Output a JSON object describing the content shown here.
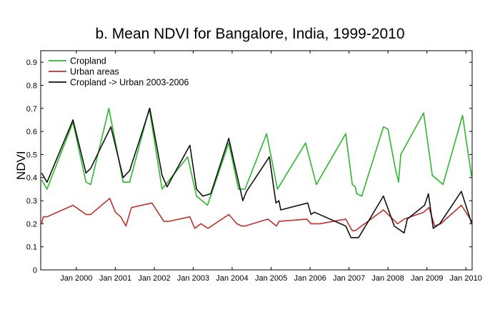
{
  "chart_data": {
    "type": "line",
    "title": "b. Mean NDVI for Bangalore, India, 1999-2010",
    "xlabel": "",
    "ylabel": "NDVI",
    "xlim": [
      "1999-02-01",
      "2010-03-01"
    ],
    "ylim": [
      0,
      0.95
    ],
    "y_ticks": [
      0,
      0.1,
      0.2,
      0.3,
      0.4,
      0.5,
      0.6,
      0.7,
      0.8,
      0.9
    ],
    "x_ticks": [
      {
        "date": "2000-01-01",
        "label": "Jan 2000"
      },
      {
        "date": "2001-01-01",
        "label": "Jan 2001"
      },
      {
        "date": "2002-01-01",
        "label": "Jan 2002"
      },
      {
        "date": "2003-01-01",
        "label": "Jan 2003"
      },
      {
        "date": "2004-01-01",
        "label": "Jan 2004"
      },
      {
        "date": "2005-01-01",
        "label": "Jan 2005"
      },
      {
        "date": "2006-01-01",
        "label": "Jan 2006"
      },
      {
        "date": "2007-01-01",
        "label": "Jan 2007"
      },
      {
        "date": "2008-01-01",
        "label": "Jan 2008"
      },
      {
        "date": "2009-01-01",
        "label": "Jan 2009"
      },
      {
        "date": "2010-01-01",
        "label": "Jan 2010"
      }
    ],
    "grid": false,
    "legend_position": "top-left",
    "series": [
      {
        "name": "Cropland",
        "color": "#2eb82e",
        "points": [
          [
            "1999-02-10",
            0.39
          ],
          [
            "1999-04-01",
            0.35
          ],
          [
            "1999-12-01",
            0.64
          ],
          [
            "2000-04-01",
            0.38
          ],
          [
            "2000-05-15",
            0.37
          ],
          [
            "2000-11-01",
            0.7
          ],
          [
            "2001-03-15",
            0.38
          ],
          [
            "2001-05-15",
            0.38
          ],
          [
            "2001-11-15",
            0.7
          ],
          [
            "2002-03-15",
            0.35
          ],
          [
            "2002-11-10",
            0.49
          ],
          [
            "2003-02-01",
            0.32
          ],
          [
            "2003-05-15",
            0.28
          ],
          [
            "2003-12-01",
            0.55
          ],
          [
            "2004-03-01",
            0.35
          ],
          [
            "2004-05-01",
            0.35
          ],
          [
            "2004-11-20",
            0.59
          ],
          [
            "2005-03-01",
            0.35
          ],
          [
            "2005-11-20",
            0.55
          ],
          [
            "2006-03-01",
            0.37
          ],
          [
            "2006-12-01",
            0.59
          ],
          [
            "2007-02-01",
            0.37
          ],
          [
            "2007-03-01",
            0.36
          ],
          [
            "2007-03-15",
            0.33
          ],
          [
            "2007-05-01",
            0.32
          ],
          [
            "2007-11-20",
            0.62
          ],
          [
            "2008-01-01",
            0.61
          ],
          [
            "2008-03-10",
            0.44
          ],
          [
            "2008-04-10",
            0.38
          ],
          [
            "2008-05-01",
            0.5
          ],
          [
            "2008-12-01",
            0.68
          ],
          [
            "2009-02-20",
            0.41
          ],
          [
            "2009-06-01",
            0.37
          ],
          [
            "2009-12-01",
            0.67
          ],
          [
            "2010-02-25",
            0.4
          ]
        ]
      },
      {
        "name": "Urban areas",
        "color": "#c0302a",
        "points": [
          [
            "1999-02-10",
            0.2
          ],
          [
            "1999-02-25",
            0.23
          ],
          [
            "1999-04-01",
            0.23
          ],
          [
            "1999-12-01",
            0.28
          ],
          [
            "2000-04-01",
            0.24
          ],
          [
            "2000-05-15",
            0.24
          ],
          [
            "2000-11-10",
            0.31
          ],
          [
            "2001-01-01",
            0.25
          ],
          [
            "2001-02-20",
            0.23
          ],
          [
            "2001-04-10",
            0.19
          ],
          [
            "2001-06-01",
            0.27
          ],
          [
            "2001-12-10",
            0.29
          ],
          [
            "2002-04-01",
            0.21
          ],
          [
            "2002-05-15",
            0.21
          ],
          [
            "2002-12-01",
            0.23
          ],
          [
            "2003-01-15",
            0.18
          ],
          [
            "2003-03-15",
            0.2
          ],
          [
            "2003-05-20",
            0.18
          ],
          [
            "2003-12-01",
            0.24
          ],
          [
            "2004-02-15",
            0.2
          ],
          [
            "2004-04-01",
            0.19
          ],
          [
            "2004-05-01",
            0.19
          ],
          [
            "2004-12-01",
            0.22
          ],
          [
            "2005-02-20",
            0.19
          ],
          [
            "2005-03-15",
            0.21
          ],
          [
            "2005-12-01",
            0.22
          ],
          [
            "2006-01-10",
            0.2
          ],
          [
            "2006-04-01",
            0.2
          ],
          [
            "2006-12-01",
            0.22
          ],
          [
            "2007-02-01",
            0.17
          ],
          [
            "2007-03-01",
            0.17
          ],
          [
            "2007-11-20",
            0.26
          ],
          [
            "2008-04-01",
            0.2
          ],
          [
            "2008-06-01",
            0.22
          ],
          [
            "2008-12-01",
            0.25
          ],
          [
            "2009-01-20",
            0.27
          ],
          [
            "2009-03-15",
            0.19
          ],
          [
            "2009-05-10",
            0.2
          ],
          [
            "2009-11-20",
            0.28
          ],
          [
            "2010-02-25",
            0.21
          ]
        ]
      },
      {
        "name": "Cropland -> Urban 2003-2006",
        "color": "#111111",
        "points": [
          [
            "1999-02-10",
            0.42
          ],
          [
            "1999-04-01",
            0.38
          ],
          [
            "1999-12-01",
            0.65
          ],
          [
            "2000-04-01",
            0.42
          ],
          [
            "2000-05-15",
            0.44
          ],
          [
            "2000-11-20",
            0.62
          ],
          [
            "2001-03-15",
            0.4
          ],
          [
            "2001-05-15",
            0.43
          ],
          [
            "2001-11-20",
            0.7
          ],
          [
            "2002-03-15",
            0.41
          ],
          [
            "2002-05-01",
            0.36
          ],
          [
            "2002-12-01",
            0.54
          ],
          [
            "2003-02-01",
            0.35
          ],
          [
            "2003-04-01",
            0.32
          ],
          [
            "2003-06-15",
            0.33
          ],
          [
            "2003-12-01",
            0.57
          ],
          [
            "2004-02-01",
            0.44
          ],
          [
            "2004-04-10",
            0.3
          ],
          [
            "2004-05-15",
            0.34
          ],
          [
            "2004-12-15",
            0.49
          ],
          [
            "2005-02-15",
            0.29
          ],
          [
            "2005-03-15",
            0.3
          ],
          [
            "2005-04-01",
            0.26
          ],
          [
            "2005-12-10",
            0.29
          ],
          [
            "2006-01-10",
            0.24
          ],
          [
            "2006-02-10",
            0.25
          ],
          [
            "2006-12-01",
            0.19
          ],
          [
            "2007-01-20",
            0.14
          ],
          [
            "2007-02-15",
            0.14
          ],
          [
            "2007-04-01",
            0.14
          ],
          [
            "2007-11-20",
            0.32
          ],
          [
            "2008-03-01",
            0.19
          ],
          [
            "2008-06-01",
            0.16
          ],
          [
            "2008-07-01",
            0.22
          ],
          [
            "2008-12-10",
            0.28
          ],
          [
            "2009-01-15",
            0.33
          ],
          [
            "2009-03-01",
            0.18
          ],
          [
            "2009-05-01",
            0.2
          ],
          [
            "2009-11-20",
            0.34
          ],
          [
            "2010-02-25",
            0.2
          ]
        ]
      }
    ]
  }
}
